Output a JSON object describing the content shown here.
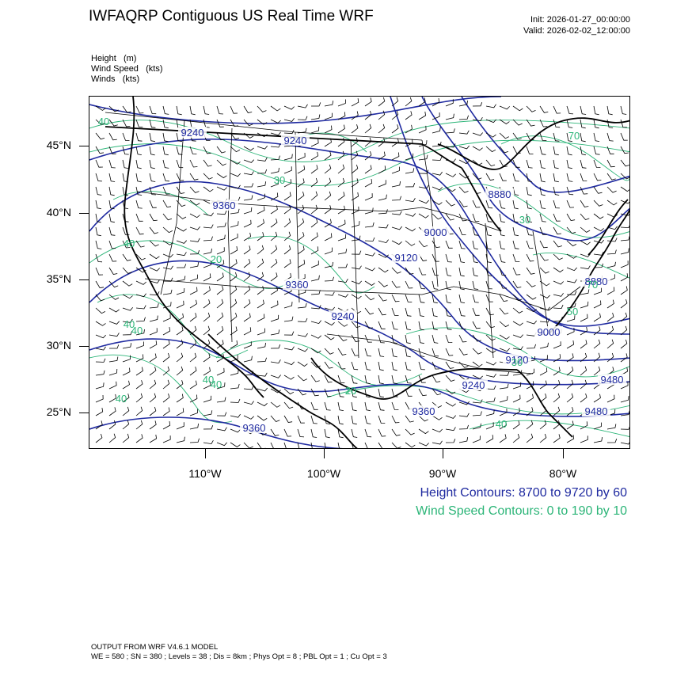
{
  "title": "IWFAQRP Contiguous US Real Time WRF",
  "init": "Init: 2026-01-27_00:00:00",
  "valid": "Valid: 2026-02-02_12:00:00",
  "variables": [
    "Height   (m)",
    "Wind Speed   (kts)",
    "Winds   (kts)"
  ],
  "lat_labels": [
    "45°N",
    "40°N",
    "35°N",
    "30°N",
    "25°N"
  ],
  "lon_labels": [
    "110°W",
    "100°W",
    "90°W",
    "80°W"
  ],
  "height_legend": "Height Contours: 8700 to 9720 by 60",
  "wind_legend": "Wind Speed Contours: 0 to 190 by 10",
  "footer_line1": "OUTPUT FROM WRF V4.6.1 MODEL",
  "footer_line2": "WE = 580 ; SN = 380 ; Levels = 38 ; Dis = 8km ; Phys Opt = 8 ; PBL Opt = 1 ; Cu Opt = 3",
  "colors": {
    "height": "#1f2aa0",
    "wind": "#2cb578",
    "boundary": "#000000"
  },
  "contour_labels": {
    "height": [
      "9240",
      "9240",
      "9360",
      "9360",
      "9240",
      "9120",
      "9000",
      "8880",
      "8880",
      "9000",
      "9120",
      "9240",
      "9360",
      "9360",
      "9480",
      "9480"
    ],
    "wind": [
      "40",
      "40",
      "20",
      "30",
      "40",
      "40",
      "20",
      "40",
      "50",
      "30",
      "30",
      "70",
      "40",
      "70",
      "40",
      "10",
      "40"
    ]
  }
}
